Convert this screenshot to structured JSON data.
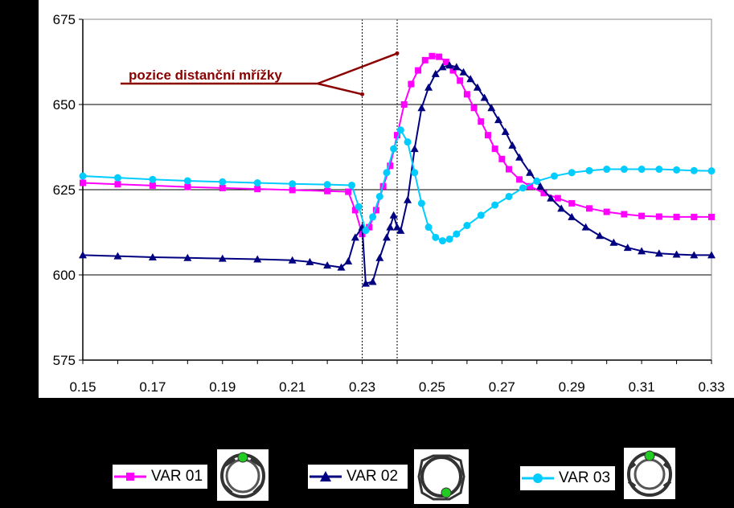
{
  "chart_data": {
    "type": "line",
    "title": "",
    "xlabel": "",
    "ylabel": "",
    "xlim": [
      0.15,
      0.33
    ],
    "ylim": [
      575,
      675
    ],
    "x_ticks": [
      "0.15",
      "0.17",
      "0.19",
      "0.21",
      "0.23",
      "0.25",
      "0.27",
      "0.29",
      "0.31",
      "0.33"
    ],
    "y_ticks": [
      "575",
      "600",
      "625",
      "650",
      "675"
    ],
    "grid": "horizontal",
    "vertical_markers": [
      0.23,
      0.24
    ],
    "annotation": {
      "text": "pozice distanční mřížky",
      "points": [
        [
          0.23,
          653
        ],
        [
          0.24,
          665
        ]
      ]
    },
    "series": [
      {
        "name": "VAR 01",
        "color": "#ff00ff",
        "marker": "square",
        "points": [
          [
            0.15,
            627
          ],
          [
            0.16,
            626.6
          ],
          [
            0.17,
            626.2
          ],
          [
            0.18,
            625.8
          ],
          [
            0.19,
            625.5
          ],
          [
            0.2,
            625.2
          ],
          [
            0.21,
            624.9
          ],
          [
            0.22,
            624.6
          ],
          [
            0.226,
            624.4
          ],
          [
            0.228,
            619
          ],
          [
            0.23,
            612
          ],
          [
            0.232,
            614
          ],
          [
            0.234,
            619
          ],
          [
            0.236,
            626
          ],
          [
            0.238,
            632
          ],
          [
            0.24,
            641
          ],
          [
            0.242,
            650
          ],
          [
            0.244,
            656
          ],
          [
            0.246,
            660
          ],
          [
            0.248,
            663
          ],
          [
            0.25,
            664.2
          ],
          [
            0.252,
            664
          ],
          [
            0.254,
            662.5
          ],
          [
            0.256,
            660
          ],
          [
            0.258,
            657
          ],
          [
            0.26,
            653
          ],
          [
            0.262,
            649
          ],
          [
            0.264,
            645
          ],
          [
            0.266,
            641
          ],
          [
            0.268,
            637
          ],
          [
            0.27,
            634
          ],
          [
            0.272,
            631
          ],
          [
            0.275,
            628
          ],
          [
            0.278,
            626
          ],
          [
            0.282,
            624
          ],
          [
            0.286,
            622.5
          ],
          [
            0.29,
            621
          ],
          [
            0.295,
            619.5
          ],
          [
            0.3,
            618.5
          ],
          [
            0.305,
            617.8
          ],
          [
            0.31,
            617.3
          ],
          [
            0.315,
            617.1
          ],
          [
            0.32,
            617
          ],
          [
            0.325,
            617
          ],
          [
            0.33,
            617
          ]
        ]
      },
      {
        "name": "VAR 02",
        "color": "#000080",
        "marker": "triangle",
        "points": [
          [
            0.15,
            605.8
          ],
          [
            0.16,
            605.5
          ],
          [
            0.17,
            605.2
          ],
          [
            0.18,
            605
          ],
          [
            0.19,
            604.8
          ],
          [
            0.2,
            604.6
          ],
          [
            0.21,
            604.3
          ],
          [
            0.215,
            603.8
          ],
          [
            0.22,
            602.8
          ],
          [
            0.224,
            602.2
          ],
          [
            0.226,
            604
          ],
          [
            0.228,
            611
          ],
          [
            0.23,
            614
          ],
          [
            0.231,
            597.5
          ],
          [
            0.233,
            598
          ],
          [
            0.235,
            605
          ],
          [
            0.237,
            611
          ],
          [
            0.238,
            614
          ],
          [
            0.239,
            617.5
          ],
          [
            0.24,
            614
          ],
          [
            0.241,
            613
          ],
          [
            0.243,
            622
          ],
          [
            0.245,
            637
          ],
          [
            0.247,
            649
          ],
          [
            0.249,
            655
          ],
          [
            0.251,
            659
          ],
          [
            0.253,
            661
          ],
          [
            0.255,
            661.5
          ],
          [
            0.257,
            661
          ],
          [
            0.259,
            659.5
          ],
          [
            0.261,
            657.5
          ],
          [
            0.263,
            655
          ],
          [
            0.265,
            652
          ],
          [
            0.267,
            649
          ],
          [
            0.269,
            645.5
          ],
          [
            0.271,
            642
          ],
          [
            0.273,
            638
          ],
          [
            0.275,
            634.5
          ],
          [
            0.278,
            630
          ],
          [
            0.281,
            626
          ],
          [
            0.284,
            622.5
          ],
          [
            0.287,
            619.5
          ],
          [
            0.29,
            617
          ],
          [
            0.294,
            614
          ],
          [
            0.298,
            611.5
          ],
          [
            0.302,
            609.5
          ],
          [
            0.306,
            608
          ],
          [
            0.31,
            607
          ],
          [
            0.315,
            606.3
          ],
          [
            0.32,
            606
          ],
          [
            0.325,
            605.8
          ],
          [
            0.33,
            605.8
          ]
        ]
      },
      {
        "name": "VAR 03",
        "color": "#00ccff",
        "marker": "circle",
        "points": [
          [
            0.15,
            629
          ],
          [
            0.16,
            628.5
          ],
          [
            0.17,
            628
          ],
          [
            0.18,
            627.6
          ],
          [
            0.19,
            627.3
          ],
          [
            0.2,
            627
          ],
          [
            0.21,
            626.7
          ],
          [
            0.22,
            626.5
          ],
          [
            0.227,
            626.3
          ],
          [
            0.229,
            620
          ],
          [
            0.231,
            613
          ],
          [
            0.233,
            617
          ],
          [
            0.235,
            623
          ],
          [
            0.237,
            630
          ],
          [
            0.239,
            637
          ],
          [
            0.241,
            642.5
          ],
          [
            0.243,
            639
          ],
          [
            0.245,
            630
          ],
          [
            0.247,
            621
          ],
          [
            0.249,
            614
          ],
          [
            0.251,
            611
          ],
          [
            0.253,
            610
          ],
          [
            0.255,
            610.5
          ],
          [
            0.257,
            612
          ],
          [
            0.26,
            614.5
          ],
          [
            0.264,
            617.5
          ],
          [
            0.268,
            620.5
          ],
          [
            0.272,
            623
          ],
          [
            0.276,
            625.5
          ],
          [
            0.28,
            627.5
          ],
          [
            0.285,
            629
          ],
          [
            0.29,
            630
          ],
          [
            0.295,
            630.6
          ],
          [
            0.3,
            631
          ],
          [
            0.305,
            631
          ],
          [
            0.31,
            631
          ],
          [
            0.315,
            631
          ],
          [
            0.32,
            630.8
          ],
          [
            0.325,
            630.6
          ],
          [
            0.33,
            630.5
          ]
        ]
      }
    ]
  },
  "legend": [
    {
      "label": "VAR 01"
    },
    {
      "label": "VAR 02"
    },
    {
      "label": "VAR 03"
    }
  ]
}
